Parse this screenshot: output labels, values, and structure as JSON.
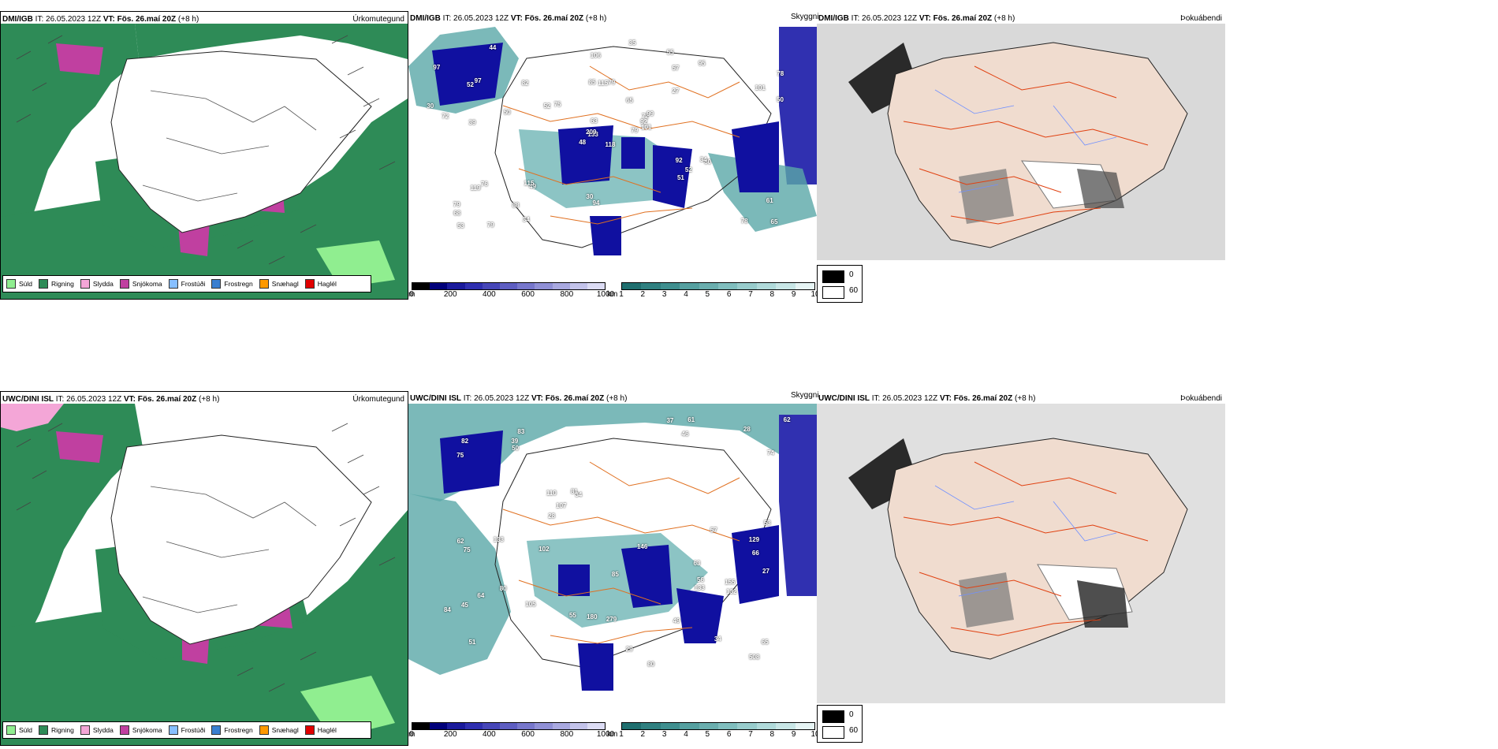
{
  "rows": [
    {
      "precip": {
        "title_model": "DMI/IGB",
        "title_it_label": "IT:",
        "title_it": "26.05.2023 12Z",
        "title_vt_label": "VT:",
        "title_vt": "Fös. 26.maí 20Z",
        "title_lead": "(+8 h)",
        "right_label": "Úrkomutegund"
      },
      "cloud": {
        "title_model": "DMI/IGB",
        "title_it_label": "IT:",
        "title_it": "26.05.2023 12Z",
        "title_vt_label": "VT:",
        "title_vt": "Fös. 26.maí 20Z",
        "title_lead": "(+8 h)",
        "right_label": "Skyggni",
        "numbers": [
          "118",
          "52",
          "133",
          "79",
          "72",
          "49",
          "55",
          "79",
          "57",
          "79",
          "44",
          "65",
          "39",
          "78",
          "48",
          "27",
          "79",
          "85",
          "65",
          "76",
          "75",
          "68",
          "88",
          "115",
          "99",
          "60",
          "97",
          "106",
          "72",
          "92",
          "50",
          "209",
          "30",
          "63",
          "82",
          "95",
          "115",
          "78",
          "61",
          "34",
          "35",
          "52",
          "50",
          "51",
          "34",
          "30",
          "92",
          "53",
          "94",
          "101",
          "119",
          "101",
          "97",
          "52"
        ]
      },
      "fog": {
        "title_model": "DMI/IGB",
        "title_it_label": "IT:",
        "title_it": "26.05.2023 12Z",
        "title_vt_label": "VT:",
        "title_vt": "Fös. 26.maí 20Z",
        "title_lead": "(+8 h)",
        "right_label": "Þokuábendi"
      }
    },
    {
      "precip": {
        "title_model": "UWC/DINI ISL",
        "title_it_label": "IT:",
        "title_it": "26.05.2023 12Z",
        "title_vt_label": "VT:",
        "title_vt": "Fös. 26.maí 20Z",
        "title_lead": "(+8 h)",
        "right_label": "Úrkomutegund"
      },
      "cloud": {
        "title_model": "UWC/DINI ISL",
        "title_it_label": "IT:",
        "title_it": "26.05.2023 12Z",
        "title_vt_label": "VT:",
        "title_vt": "Fös. 26.maí 20Z",
        "title_lead": "(+8 h)",
        "right_label": "Skyggni",
        "numbers": [
          "63",
          "66",
          "51",
          "83",
          "34",
          "34",
          "45",
          "46",
          "110",
          "80",
          "75",
          "62",
          "82",
          "65",
          "55",
          "53",
          "85",
          "146",
          "81",
          "80",
          "62",
          "28",
          "28",
          "27",
          "37",
          "39",
          "56",
          "75",
          "50",
          "57",
          "29",
          "49",
          "107",
          "102",
          "129",
          "132",
          "133",
          "133",
          "279",
          "64",
          "74",
          "61",
          "508",
          "180",
          "155",
          "105",
          "84"
        ]
      },
      "fog": {
        "title_model": "UWC/DINI ISL",
        "title_it_label": "IT:",
        "title_it": "26.05.2023 12Z",
        "title_vt_label": "VT:",
        "title_vt": "Fös. 26.maí 20Z",
        "title_lead": "(+8 h)",
        "right_label": "Þokuábendi"
      }
    }
  ],
  "precip_legend": [
    {
      "label": "Súld",
      "color": "#90ee90"
    },
    {
      "label": "Rigning",
      "color": "#2e8b57"
    },
    {
      "label": "Slydda",
      "color": "#f4a6d7"
    },
    {
      "label": "Snjókoma",
      "color": "#c040a0"
    },
    {
      "label": "Frostúði",
      "color": "#87bfff"
    },
    {
      "label": "Frostregn",
      "color": "#3a7fd0"
    },
    {
      "label": "Snæhagl",
      "color": "#ff9900"
    },
    {
      "label": "Haglél",
      "color": "#e00000"
    }
  ],
  "ceiling_bar": {
    "unit": "m",
    "ticks": [
      "0",
      "200",
      "400",
      "600",
      "800",
      "1000"
    ],
    "colors": [
      "#000000",
      "#00007a",
      "#1a1a9c",
      "#2f2fb0",
      "#4646b8",
      "#5e5ec2",
      "#7777cc",
      "#9090d6",
      "#a9a9e0",
      "#c3c3ea",
      "#dcdcf4"
    ]
  },
  "visibility_bar": {
    "unit": "km",
    "ticks": [
      "1",
      "2",
      "3",
      "4",
      "5",
      "6",
      "7",
      "8",
      "9",
      "10"
    ],
    "colors": [
      "#1f6f6f",
      "#2f8080",
      "#3f8f8f",
      "#55a0a0",
      "#6aaeae",
      "#80bebe",
      "#98cccc",
      "#b0dada",
      "#c8e6e6",
      "#e6f4f4"
    ]
  },
  "fog_legend": {
    "black_label": "0",
    "white_label": "60"
  }
}
